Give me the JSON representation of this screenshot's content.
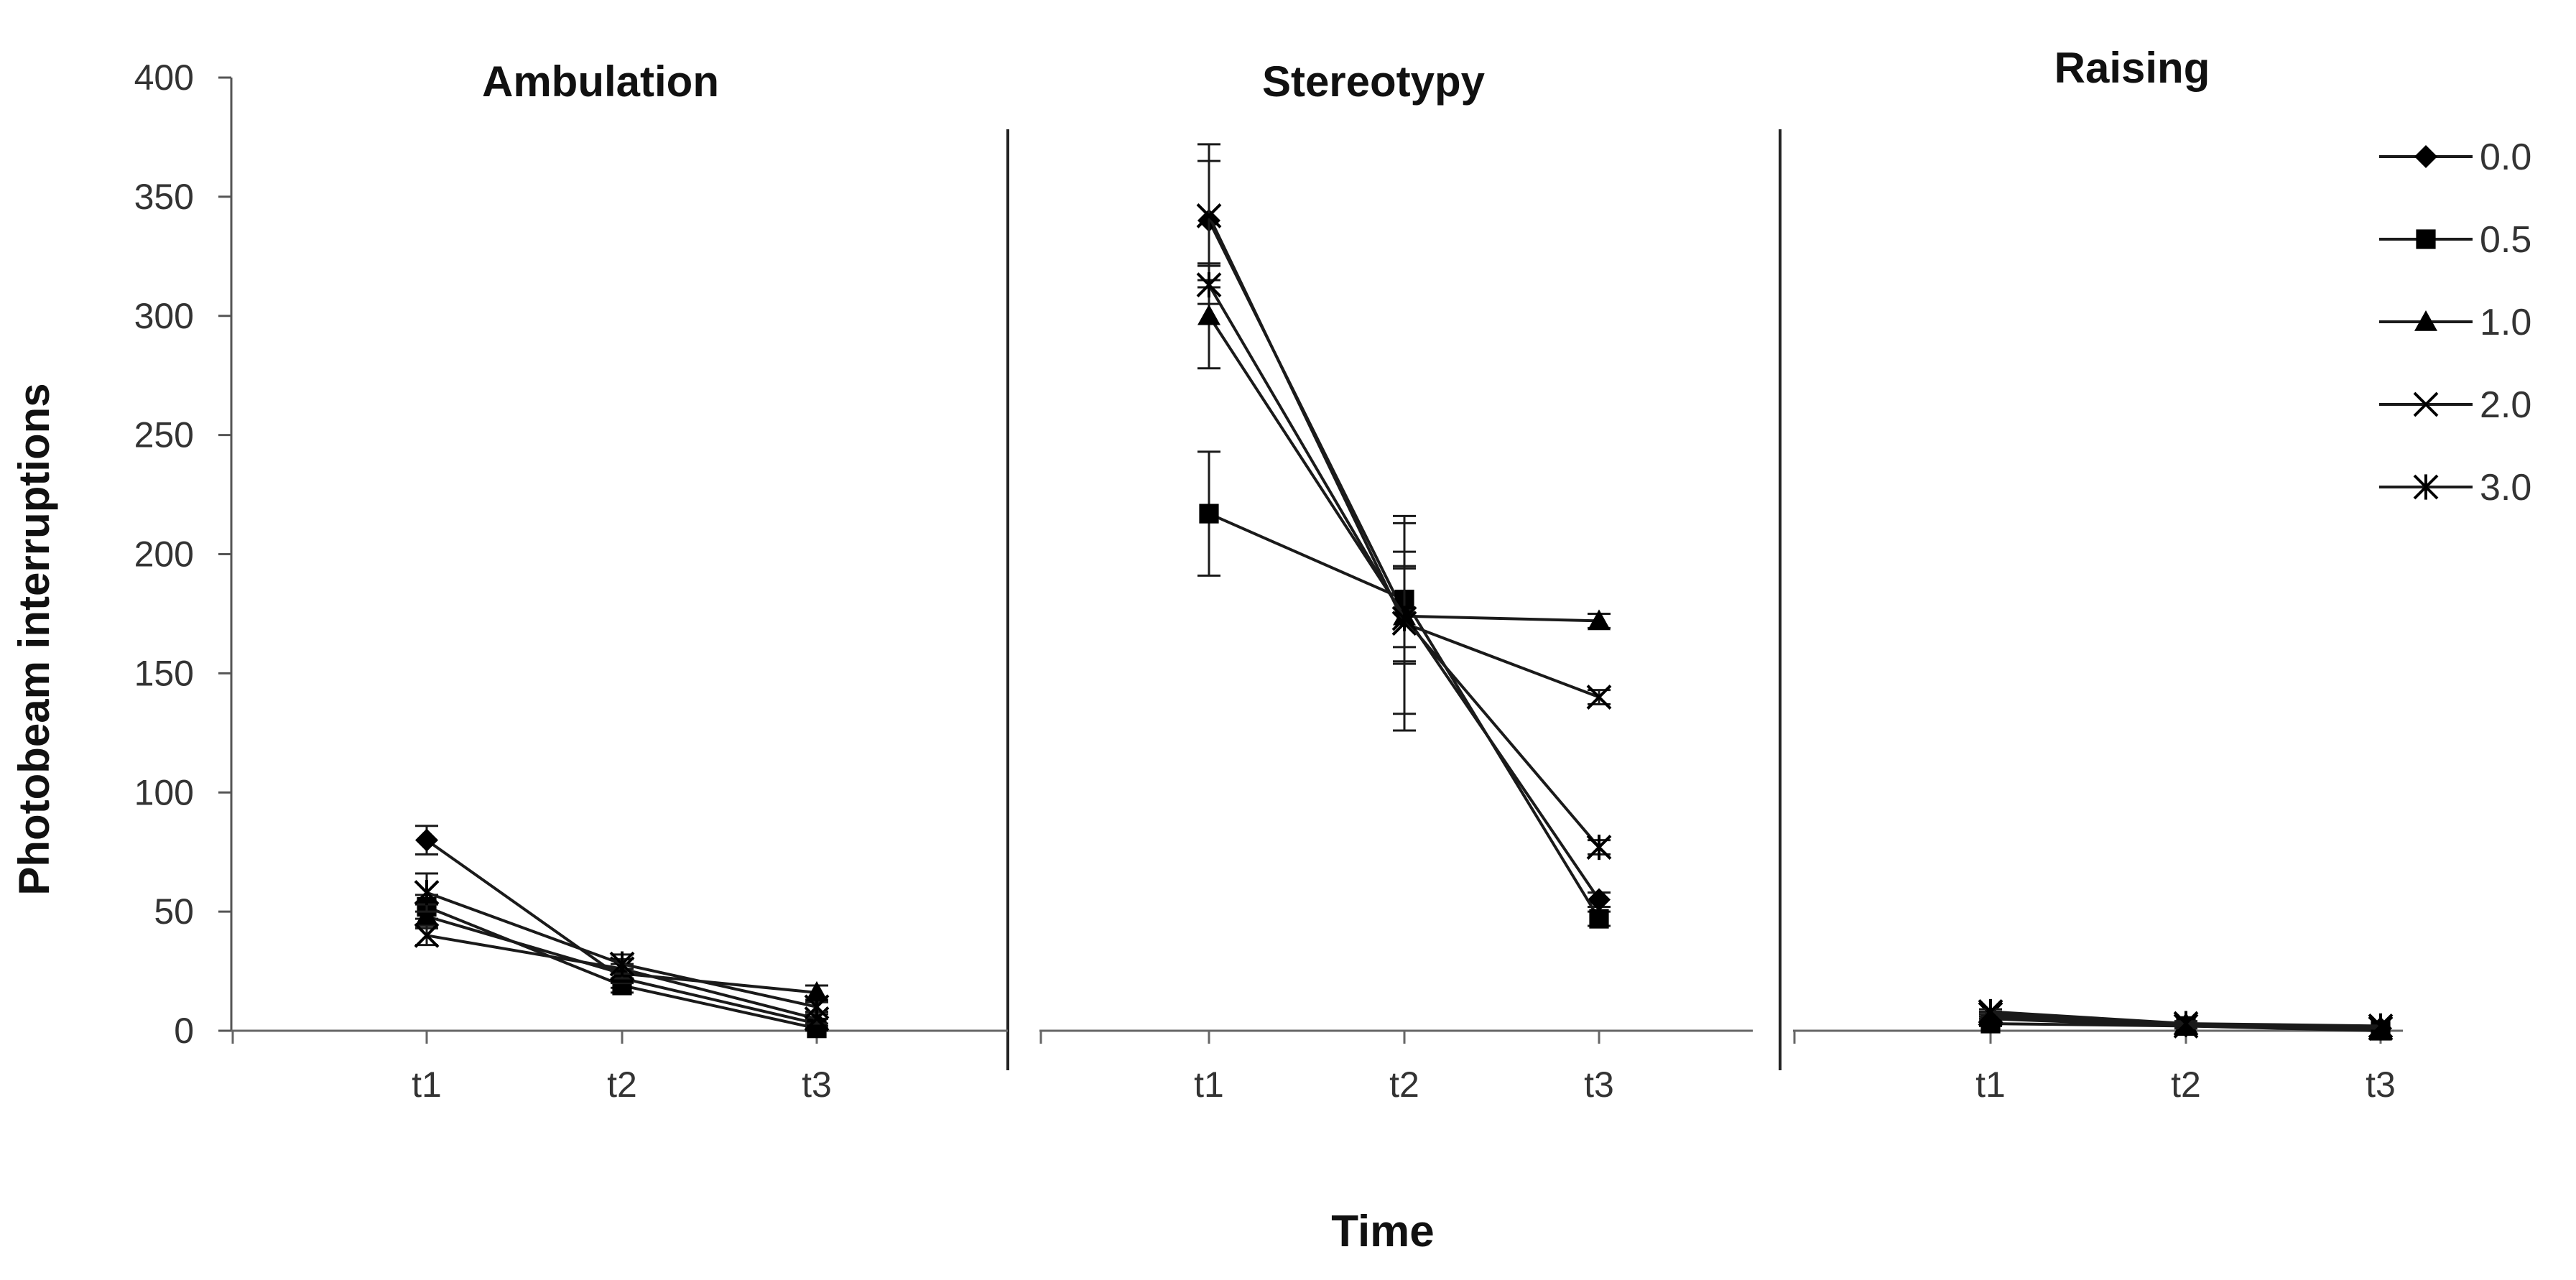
{
  "figure": {
    "ylabel": "Photobeam interruptions",
    "xlabel": "Time"
  },
  "legend": {
    "placement": "top-right",
    "items": [
      {
        "label": "0.0",
        "marker": "diamond-icon"
      },
      {
        "label": "0.5",
        "marker": "square-icon"
      },
      {
        "label": "1.0",
        "marker": "triangle-icon"
      },
      {
        "label": "2.0",
        "marker": "x-cross-icon"
      },
      {
        "label": "3.0",
        "marker": "asterisk-icon"
      }
    ]
  },
  "chart_data": [
    {
      "type": "line",
      "title": "Ambulation",
      "xlabel": "Time",
      "ylabel": "Photobeam interruptions",
      "categories": [
        "t1",
        "t2",
        "t3"
      ],
      "yticks": [
        "0",
        "50",
        "100",
        "150",
        "200",
        "250",
        "300",
        "350",
        "400"
      ],
      "ylim": [
        0,
        400
      ],
      "grid": false,
      "series": [
        {
          "name": "0.0",
          "marker": "diamond",
          "values": [
            80,
            22,
            3
          ],
          "errors": [
            6,
            4,
            2
          ]
        },
        {
          "name": "0.5",
          "marker": "square",
          "values": [
            52,
            19,
            1
          ],
          "errors": [
            5,
            3,
            1
          ]
        },
        {
          "name": "1.0",
          "marker": "triangle",
          "values": [
            48,
            24,
            16
          ],
          "errors": [
            5,
            4,
            3
          ]
        },
        {
          "name": "2.0",
          "marker": "x",
          "values": [
            40,
            26,
            5
          ],
          "errors": [
            4,
            4,
            2
          ]
        },
        {
          "name": "3.0",
          "marker": "asterisk",
          "values": [
            58,
            28,
            10
          ],
          "errors": [
            8,
            4,
            2
          ]
        }
      ]
    },
    {
      "type": "line",
      "title": "Stereotypy",
      "xlabel": "Time",
      "ylabel": "Photobeam interruptions",
      "categories": [
        "t1",
        "t2",
        "t3"
      ],
      "ylim": [
        0,
        400
      ],
      "grid": false,
      "series": [
        {
          "name": "0.0",
          "marker": "diamond",
          "values": [
            340,
            175,
            55
          ],
          "errors": [
            25,
            20,
            3
          ]
        },
        {
          "name": "0.5",
          "marker": "square",
          "values": [
            217,
            181,
            47
          ],
          "errors": [
            26,
            20,
            3
          ]
        },
        {
          "name": "1.0",
          "marker": "triangle",
          "values": [
            300,
            174,
            172
          ],
          "errors": [
            22,
            20,
            3
          ]
        },
        {
          "name": "2.0",
          "marker": "x",
          "values": [
            342,
            171,
            140
          ],
          "errors": [
            30,
            45,
            3
          ]
        },
        {
          "name": "3.0",
          "marker": "asterisk",
          "values": [
            313,
            173,
            77
          ],
          "errors": [
            8,
            40,
            3
          ]
        }
      ]
    },
    {
      "type": "line",
      "title": "Raising",
      "xlabel": "Time",
      "ylabel": "Photobeam interruptions",
      "categories": [
        "t1",
        "t2",
        "t3"
      ],
      "ylim": [
        0,
        400
      ],
      "grid": false,
      "series": [
        {
          "name": "0.0",
          "marker": "diamond",
          "values": [
            5,
            2,
            1
          ],
          "errors": [
            1,
            1,
            0
          ]
        },
        {
          "name": "0.5",
          "marker": "square",
          "values": [
            3,
            2,
            0
          ],
          "errors": [
            1,
            1,
            0
          ]
        },
        {
          "name": "1.0",
          "marker": "triangle",
          "values": [
            6,
            3,
            1
          ],
          "errors": [
            1,
            1,
            0
          ]
        },
        {
          "name": "2.0",
          "marker": "x",
          "values": [
            7,
            2,
            1
          ],
          "errors": [
            1,
            1,
            0
          ]
        },
        {
          "name": "3.0",
          "marker": "asterisk",
          "values": [
            8,
            3,
            2
          ],
          "errors": [
            1,
            1,
            0
          ]
        }
      ]
    }
  ]
}
